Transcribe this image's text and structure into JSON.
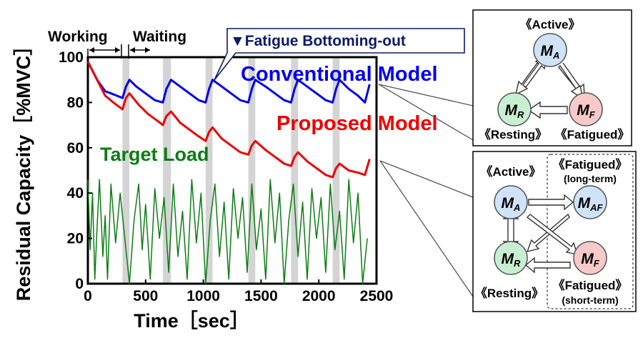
{
  "chart_data": {
    "type": "line",
    "xlabel": "Time［sec］",
    "ylabel": "Residual Capacity［%MVC］",
    "xlim": [
      0,
      2500
    ],
    "ylim": [
      0,
      100
    ],
    "xticks": [
      "0",
      "500",
      "1000",
      "1500",
      "2000",
      "2500"
    ],
    "yticks": [
      "0",
      "20",
      "40",
      "60",
      "80",
      "100"
    ],
    "grid": false,
    "working_label": "Working",
    "waiting_label": "Waiting",
    "fatigue_annotation": "▼Fatigue Bottoming-out",
    "rest_periods": [
      [
        300,
        360
      ],
      [
        650,
        720
      ],
      [
        1020,
        1080
      ],
      [
        1390,
        1450
      ],
      [
        1760,
        1820
      ],
      [
        2120,
        2180
      ]
    ],
    "series": [
      {
        "name": "Conventional Model",
        "color": "#0000ee",
        "x": [
          0,
          80,
          150,
          200,
          250,
          300,
          330,
          360,
          420,
          500,
          580,
          650,
          680,
          720,
          800,
          880,
          960,
          1020,
          1050,
          1080,
          1160,
          1240,
          1320,
          1390,
          1420,
          1450,
          1540,
          1620,
          1700,
          1760,
          1790,
          1820,
          1900,
          1980,
          2060,
          2120,
          2150,
          2180,
          2260,
          2340,
          2400,
          2440
        ],
        "y": [
          98,
          90,
          85,
          84,
          83,
          82,
          87,
          90,
          87,
          84,
          81,
          80,
          86,
          90,
          87,
          84,
          81,
          80,
          86,
          90,
          87,
          84,
          81,
          80,
          86,
          90,
          87,
          84,
          81,
          80,
          86,
          90,
          87,
          84,
          81,
          80,
          86,
          90,
          86,
          83,
          80,
          88
        ]
      },
      {
        "name": "Proposed Model",
        "color": "#ee0000",
        "x": [
          0,
          80,
          150,
          220,
          300,
          330,
          360,
          440,
          520,
          600,
          650,
          680,
          720,
          800,
          880,
          960,
          1020,
          1050,
          1080,
          1160,
          1240,
          1320,
          1390,
          1420,
          1450,
          1540,
          1620,
          1700,
          1760,
          1790,
          1820,
          1900,
          1980,
          2060,
          2120,
          2150,
          2180,
          2260,
          2340,
          2400,
          2440
        ],
        "y": [
          98,
          90,
          83,
          80,
          77,
          82,
          84,
          79,
          75,
          72,
          70,
          74,
          76,
          71,
          68,
          65,
          63,
          67,
          69,
          64,
          61,
          58,
          57,
          61,
          63,
          59,
          56,
          53,
          52,
          56,
          58,
          54,
          51,
          48,
          47,
          51,
          53,
          50,
          49,
          48,
          55
        ]
      },
      {
        "name": "Target Load",
        "color": "#0b7d12",
        "values_note": "pulsed load between 0 and ~48 %MVC",
        "x": [
          0,
          20,
          40,
          60,
          80,
          100,
          130,
          150,
          170,
          200,
          240,
          280,
          320,
          360,
          400,
          440,
          470,
          500,
          540,
          580,
          620,
          660,
          700,
          740,
          780,
          820,
          860,
          900,
          940,
          980,
          1020,
          1060,
          1100,
          1140,
          1180,
          1220,
          1260,
          1300,
          1340,
          1380,
          1420,
          1460,
          1500,
          1540,
          1580,
          1620,
          1660,
          1700,
          1740,
          1780,
          1820,
          1860,
          1900,
          1940,
          1980,
          2020,
          2060,
          2100,
          2140,
          2180,
          2220,
          2260,
          2300,
          2340,
          2380,
          2420
        ],
        "y": [
          46,
          15,
          40,
          2,
          25,
          46,
          12,
          30,
          2,
          44,
          18,
          40,
          20,
          0,
          28,
          44,
          15,
          35,
          2,
          42,
          20,
          38,
          5,
          44,
          12,
          32,
          2,
          46,
          18,
          40,
          0,
          28,
          44,
          12,
          36,
          2,
          42,
          20,
          38,
          5,
          44,
          15,
          33,
          2,
          46,
          18,
          40,
          0,
          28,
          44,
          12,
          36,
          2,
          42,
          20,
          38,
          5,
          44,
          15,
          32,
          2,
          46,
          18,
          40,
          0,
          20
        ]
      }
    ]
  },
  "series_labels": {
    "conventional": "Conventional Model",
    "proposed": "Proposed Model",
    "target": "Target Load"
  },
  "models": {
    "top": {
      "active_label": "《Active》",
      "resting_label": "《Resting》",
      "fatigued_label": "《Fatigued》",
      "ma": "M_A",
      "mr": "M_R",
      "mf": "M_F"
    },
    "bottom": {
      "active_label": "《Active》",
      "resting_label": "《Resting》",
      "fatigued_long_label": "《Fatigued》",
      "long_term": "(long-term)",
      "fatigued_short_label": "《Fatigued》",
      "short_term": "(short-term)",
      "ma": "M_A",
      "maf": "M_AF",
      "mr": "M_R",
      "mf": "M_F"
    },
    "colors": {
      "active": "#cfe3f7",
      "resting": "#c9efd3",
      "fatigued": "#f8c9c9"
    }
  }
}
